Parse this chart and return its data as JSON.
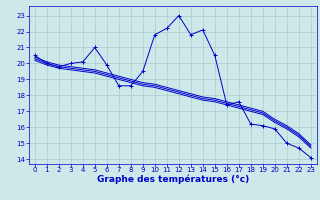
{
  "xlabel": "Graphe des températures (°c)",
  "x_ticks": [
    0,
    1,
    2,
    3,
    4,
    5,
    6,
    7,
    8,
    9,
    10,
    11,
    12,
    13,
    14,
    15,
    16,
    17,
    18,
    19,
    20,
    21,
    22,
    23
  ],
  "yticks": [
    14,
    15,
    16,
    17,
    18,
    19,
    20,
    21,
    22,
    23
  ],
  "ylim": [
    13.7,
    23.6
  ],
  "xlim": [
    -0.5,
    23.5
  ],
  "background_color": "#cce8e8",
  "grid_color": "#aacccc",
  "line_color": "#0000cc",
  "line1": {
    "x": [
      0,
      1,
      2,
      3,
      4,
      5,
      6,
      7,
      8,
      9,
      10,
      11,
      12,
      13,
      14,
      15,
      16,
      17,
      18,
      19,
      20,
      21,
      22,
      23
    ],
    "y": [
      20.5,
      20.0,
      19.8,
      20.0,
      20.1,
      21.0,
      19.9,
      18.6,
      18.6,
      19.5,
      21.8,
      22.2,
      23.0,
      21.8,
      22.1,
      20.5,
      17.4,
      17.6,
      16.2,
      16.1,
      15.9,
      15.0,
      14.7,
      14.1
    ]
  },
  "line2": {
    "x": [
      0,
      1,
      2,
      3,
      4,
      5,
      6,
      7,
      8,
      9,
      10,
      11,
      12,
      13,
      14,
      15,
      16,
      17,
      18,
      19,
      20,
      21,
      22,
      23
    ],
    "y": [
      20.4,
      20.1,
      19.9,
      19.8,
      19.7,
      19.6,
      19.4,
      19.2,
      19.0,
      18.8,
      18.7,
      18.5,
      18.3,
      18.1,
      17.9,
      17.8,
      17.6,
      17.4,
      17.2,
      17.0,
      16.5,
      16.1,
      15.6,
      14.9
    ]
  },
  "line3": {
    "x": [
      0,
      1,
      2,
      3,
      4,
      5,
      6,
      7,
      8,
      9,
      10,
      11,
      12,
      13,
      14,
      15,
      16,
      17,
      18,
      19,
      20,
      21,
      22,
      23
    ],
    "y": [
      20.3,
      20.0,
      19.8,
      19.7,
      19.6,
      19.5,
      19.3,
      19.1,
      18.9,
      18.7,
      18.6,
      18.4,
      18.2,
      18.0,
      17.8,
      17.7,
      17.5,
      17.3,
      17.1,
      16.9,
      16.4,
      16.0,
      15.5,
      14.8
    ]
  },
  "line4": {
    "x": [
      0,
      1,
      2,
      3,
      4,
      5,
      6,
      7,
      8,
      9,
      10,
      11,
      12,
      13,
      14,
      15,
      16,
      17,
      18,
      19,
      20,
      21,
      22,
      23
    ],
    "y": [
      20.2,
      19.9,
      19.7,
      19.6,
      19.5,
      19.4,
      19.2,
      19.0,
      18.8,
      18.6,
      18.5,
      18.3,
      18.1,
      17.9,
      17.7,
      17.6,
      17.4,
      17.2,
      17.0,
      16.8,
      16.3,
      15.9,
      15.4,
      14.7
    ]
  },
  "label_fontsize": 5.0,
  "xlabel_fontsize": 6.5
}
